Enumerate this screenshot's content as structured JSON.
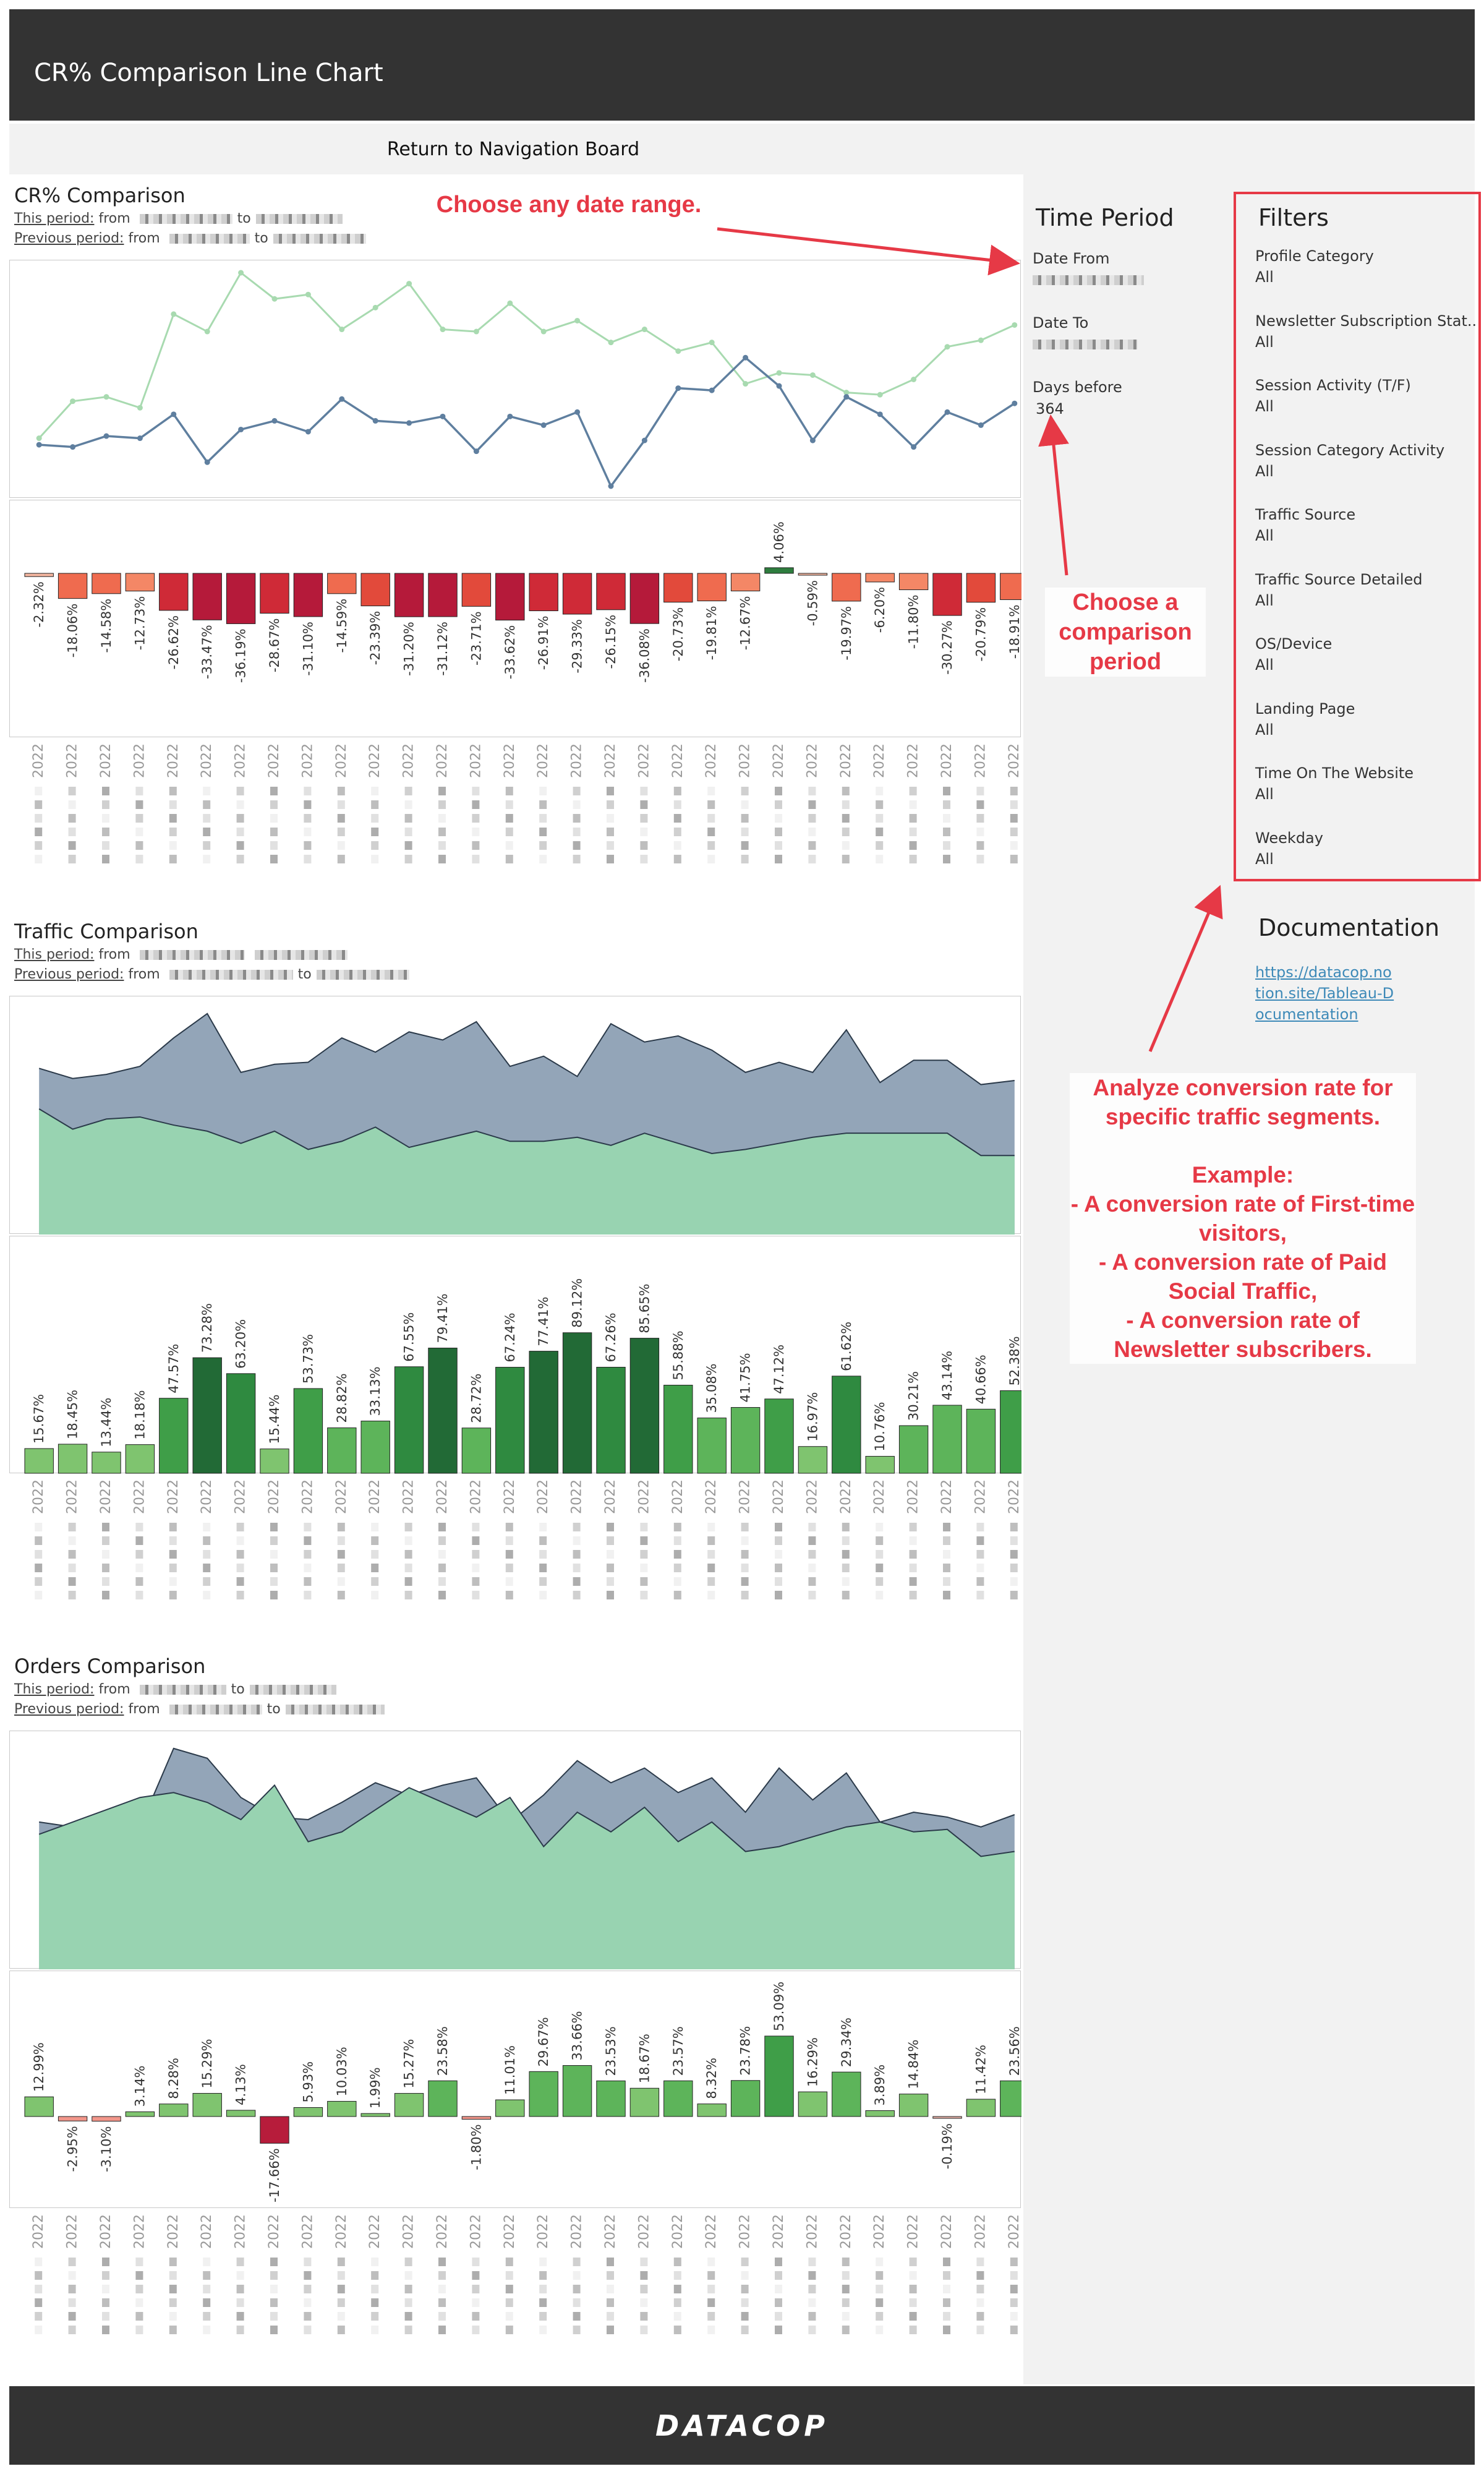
{
  "header": {
    "title": "CR% Comparison Line Chart"
  },
  "nav": {
    "return_button": "Return to Navigation Board"
  },
  "colors": {
    "green_line": "#a8dab0",
    "blue_line": "#5f7f9f",
    "negative": "#b71c3b",
    "positive": "#2e7d3e",
    "area_green": "#98d3b1",
    "area_blue": "#93a5b8"
  },
  "sections": {
    "cr": {
      "title": "CR% Comparison",
      "this_period": "This period:",
      "prev_period": "Previous period:",
      "from": "from",
      "to": "to"
    },
    "traffic": {
      "title": "Traffic Comparison",
      "this_period": "This period:",
      "prev_period": "Previous period:",
      "from": "from",
      "to": "to"
    },
    "orders": {
      "title": "Orders Comparison",
      "this_period": "This period:",
      "prev_period": "Previous period:",
      "from": "from",
      "to": "to"
    }
  },
  "year_label": "2022",
  "time_period": {
    "title": "Time Period",
    "date_from_label": "Date From",
    "date_to_label": "Date To",
    "days_before_label": "Days before",
    "days_before_value": "364"
  },
  "filters": {
    "title": "Filters",
    "items": [
      {
        "label": "Profile Category",
        "value": "All"
      },
      {
        "label": "Newsletter Subscription Stat..",
        "value": "All"
      },
      {
        "label": "Session Activity (T/F)",
        "value": "All"
      },
      {
        "label": "Session Category Activity",
        "value": "All"
      },
      {
        "label": "Traffic Source",
        "value": "All"
      },
      {
        "label": "Traffic Source Detailed",
        "value": "All"
      },
      {
        "label": "OS/Device",
        "value": "All"
      },
      {
        "label": "Landing Page",
        "value": "All"
      },
      {
        "label": "Time On The Website",
        "value": "All"
      },
      {
        "label": "Weekday",
        "value": "All"
      }
    ]
  },
  "documentation": {
    "title": "Documentation",
    "link": "https://datacop.notion.site/Tableau-Documentation"
  },
  "annotations": {
    "date_range": "Choose any date range.",
    "comparison": "Choose a comparison period",
    "segments_1": "Analyze conversion rate for specific traffic segments.",
    "segments_2": "Example:",
    "segments_3": "- A conversion rate of First-time visitors,",
    "segments_4": "- A conversion rate of Paid Social Traffic,",
    "segments_5": "- A conversion rate of Newsletter subscribers."
  },
  "footer": {
    "brand": "DATACOP"
  },
  "chart_data": [
    {
      "type": "line",
      "name": "cr-line",
      "series": [
        {
          "values": [
            0.2,
            1.9,
            2.1,
            1.6,
            5.9,
            5.1,
            7.8,
            6.6,
            6.8,
            5.2,
            6.2,
            7.3,
            5.2,
            5.1,
            6.4,
            5.1,
            5.6,
            4.6,
            5.2,
            4.2,
            4.6,
            2.7,
            3.2,
            3.1,
            2.3,
            2.2,
            2.9,
            4.4,
            4.7,
            5.4
          ]
        },
        {
          "values": [
            -0.1,
            -0.2,
            0.3,
            0.2,
            1.3,
            -0.9,
            0.6,
            1.0,
            0.5,
            2.0,
            1.0,
            0.9,
            1.2,
            -0.4,
            1.2,
            0.8,
            1.4,
            -2.0,
            0.1,
            2.5,
            2.4,
            3.9,
            2.6,
            0.1,
            2.1,
            1.3,
            -0.2,
            1.4,
            0.8,
            1.8
          ]
        }
      ]
    },
    {
      "type": "bar",
      "name": "cr-bars",
      "values": [
        -2.32,
        -18.06,
        -14.58,
        -12.73,
        -26.62,
        -33.47,
        -36.19,
        -28.67,
        -31.1,
        -14.59,
        -23.39,
        -31.2,
        -31.12,
        -23.71,
        -33.62,
        -26.91,
        -29.33,
        -26.15,
        -36.08,
        -20.73,
        -19.81,
        -12.67,
        4.06,
        -0.59,
        -19.97,
        -6.2,
        -11.8,
        -30.27,
        -20.79,
        -18.91
      ],
      "labels": [
        "-2.32%",
        "-18.06%",
        "-14.58%",
        "-12.73%",
        "-26.62%",
        "-33.47%",
        "-36.19%",
        "-28.67%",
        "-31.10%",
        "-14.59%",
        "-23.39%",
        "-31.20%",
        "-31.12%",
        "-23.71%",
        "-33.62%",
        "-26.91%",
        "-29.33%",
        "-26.15%",
        "-36.08%",
        "-20.73%",
        "-19.81%",
        "-12.67%",
        "4.06%",
        "-0.59%",
        "-19.97%",
        "-6.20%",
        "-11.80%",
        "-30.27%",
        "-20.79%",
        "-18.91%"
      ]
    },
    {
      "type": "area",
      "name": "traffic-area",
      "series": [
        {
          "values": [
            82,
            77,
            79,
            83,
            97,
            109,
            80,
            84,
            85,
            97,
            90,
            100,
            96,
            105,
            83,
            88,
            78,
            104,
            95,
            98,
            91,
            80,
            85,
            80,
            101,
            75,
            86,
            86,
            74,
            76
          ]
        },
        {
          "values": [
            62,
            52,
            57,
            58,
            54,
            51,
            45,
            51,
            42,
            46,
            53,
            43,
            47,
            51,
            46,
            46,
            48,
            44,
            50,
            45,
            40,
            42,
            45,
            48,
            50,
            50,
            50,
            50,
            39,
            39
          ]
        }
      ]
    },
    {
      "type": "bar",
      "name": "traffic-bars",
      "values": [
        15.67,
        18.45,
        13.44,
        18.18,
        47.57,
        73.28,
        63.2,
        15.44,
        53.73,
        28.82,
        33.13,
        67.55,
        79.41,
        28.72,
        67.24,
        77.41,
        89.12,
        67.26,
        85.65,
        55.88,
        35.08,
        41.75,
        47.12,
        16.97,
        61.62,
        10.76,
        30.21,
        43.14,
        40.66,
        52.38
      ],
      "labels": [
        "15.67%",
        "18.45%",
        "13.44%",
        "18.18%",
        "47.57%",
        "73.28%",
        "63.20%",
        "15.44%",
        "53.73%",
        "28.82%",
        "33.13%",
        "67.55%",
        "79.41%",
        "28.72%",
        "67.24%",
        "77.41%",
        "89.12%",
        "67.26%",
        "85.65%",
        "55.88%",
        "35.08%",
        "41.75%",
        "47.12%",
        "16.97%",
        "61.62%",
        "10.76%",
        "30.21%",
        "43.14%",
        "40.66%",
        "52.38%"
      ]
    },
    {
      "type": "area",
      "name": "orders-area",
      "series": [
        {
          "values": [
            60,
            58,
            65,
            58,
            90,
            86,
            70,
            62,
            61,
            68,
            76,
            71,
            75,
            78,
            60,
            71,
            85,
            76,
            82,
            72,
            78,
            64,
            82,
            69,
            80,
            60,
            64,
            62,
            58,
            63
          ]
        },
        {
          "values": [
            55,
            60,
            65,
            70,
            72,
            68,
            61,
            75,
            52,
            56,
            65,
            74,
            68,
            62,
            70,
            50,
            64,
            56,
            66,
            52,
            60,
            48,
            50,
            54,
            58,
            60,
            56,
            57,
            46,
            48
          ]
        }
      ]
    },
    {
      "type": "bar",
      "name": "orders-bars",
      "values": [
        12.99,
        -2.95,
        -3.1,
        3.14,
        8.28,
        15.29,
        4.13,
        -17.66,
        5.93,
        10.03,
        1.99,
        15.27,
        23.58,
        -1.8,
        11.01,
        29.67,
        33.66,
        23.53,
        18.67,
        23.57,
        8.32,
        23.78,
        53.09,
        16.29,
        29.34,
        3.89,
        14.84,
        -0.19,
        11.42,
        23.56
      ],
      "labels": [
        "12.99%",
        "-2.95%",
        "-3.10%",
        "3.14%",
        "8.28%",
        "15.29%",
        "4.13%",
        "-17.66%",
        "5.93%",
        "10.03%",
        "1.99%",
        "15.27%",
        "23.58%",
        "-1.80%",
        "11.01%",
        "29.67%",
        "33.66%",
        "23.53%",
        "18.67%",
        "23.57%",
        "8.32%",
        "23.78%",
        "53.09%",
        "16.29%",
        "29.34%",
        "3.89%",
        "14.84%",
        "-0.19%",
        "11.42%",
        "23.56%"
      ]
    }
  ]
}
